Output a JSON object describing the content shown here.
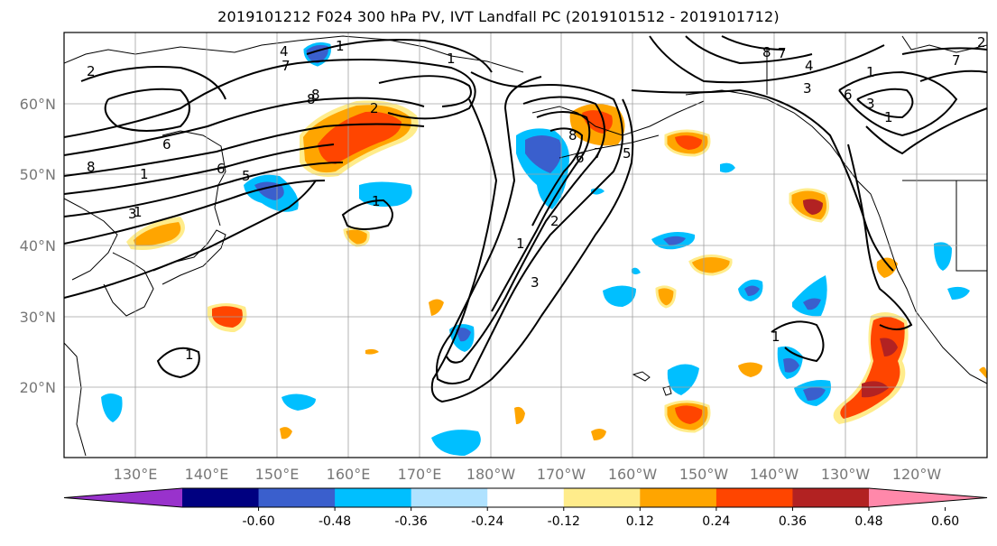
{
  "title": "2019101212 F024 300 hPa PV, IVT Landfall PC (2019101512 - 2019101712)",
  "lat_labels": [
    "60°N",
    "50°N",
    "40°N",
    "30°N",
    "20°N"
  ],
  "lon_labels": [
    "130°E",
    "140°E",
    "150°E",
    "160°E",
    "170°E",
    "180°W",
    "170°W",
    "160°W",
    "150°W",
    "140°W",
    "130°W",
    "120°W"
  ],
  "colorbar": {
    "colors": [
      "#9932cc",
      "#000080",
      "#3a5fcd",
      "#00bfff",
      "#b0e2ff",
      "#ffffff",
      "#ffec8b",
      "#ffa500",
      "#ff4500",
      "#b22222",
      "#ff88aa"
    ],
    "tick_labels": [
      "-0.60",
      "-0.48",
      "-0.36",
      "-0.24",
      "-0.12",
      "0.12",
      "0.24",
      "0.36",
      "0.48",
      "0.60"
    ]
  },
  "contour_labels": [
    "2",
    "4",
    "7",
    "1",
    "8",
    "2",
    "1",
    "8",
    "7",
    "4",
    "7",
    "3",
    "8",
    "6",
    "2",
    "1",
    "6",
    "5",
    "8",
    "1",
    "3",
    "1",
    "1",
    "6",
    "7",
    "8",
    "5",
    "6",
    "3",
    "2",
    "1",
    "3",
    "1",
    "1",
    "1"
  ]
}
